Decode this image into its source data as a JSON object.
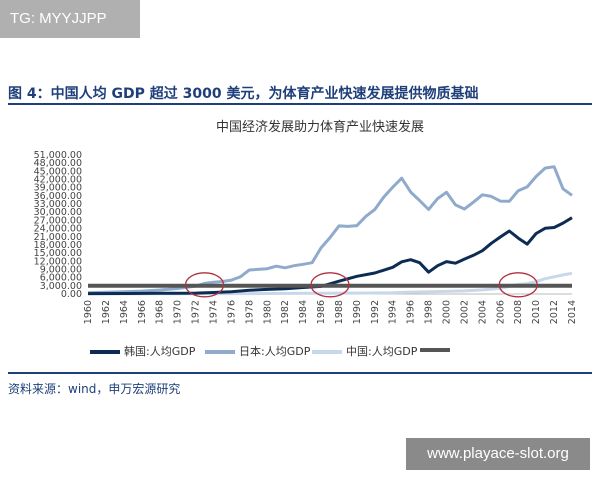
{
  "tag_text": "TG: MYYJJPP",
  "figure_title": "图 4：中国人均 GDP 超过 3000 美元，为体育产业快速发展提供物质基础",
  "source_text": "资料来源：wind，申万宏源研究",
  "watermark_text": "www.playace-slot.org",
  "chart_data": {
    "type": "line",
    "title": "中国经济发展助力体育产业快速发展",
    "ylim": [
      0,
      51000
    ],
    "xlim": [
      1960,
      2014
    ],
    "y_ticks": [
      "0.00",
      "3,000.00",
      "6,000.00",
      "9,000.00",
      "12,000.00",
      "15,000.00",
      "18,000.00",
      "21,000.00",
      "24,000.00",
      "27,000.00",
      "30,000.00",
      "33,000.00",
      "36,000.00",
      "39,000.00",
      "42,000.00",
      "45,000.00",
      "48,000.00",
      "51,000.00"
    ],
    "x_ticks": [
      "1960",
      "1962",
      "1964",
      "1966",
      "1968",
      "1970",
      "1972",
      "1974",
      "1976",
      "1978",
      "1980",
      "1982",
      "1984",
      "1986",
      "1988",
      "1990",
      "1992",
      "1994",
      "1996",
      "1998",
      "2000",
      "2002",
      "2004",
      "2006",
      "2008",
      "2010",
      "2012",
      "2014"
    ],
    "legend_position": "bottom",
    "series": [
      {
        "name": "韩国:人均GDP",
        "color": "#0d2c54",
        "points": [
          [
            1960,
            150
          ],
          [
            1964,
            200
          ],
          [
            1968,
            300
          ],
          [
            1970,
            280
          ],
          [
            1972,
            330
          ],
          [
            1974,
            550
          ],
          [
            1976,
            830
          ],
          [
            1978,
            1400
          ],
          [
            1980,
            1700
          ],
          [
            1982,
            1900
          ],
          [
            1984,
            2400
          ],
          [
            1986,
            2800
          ],
          [
            1988,
            4700
          ],
          [
            1990,
            6500
          ],
          [
            1992,
            7700
          ],
          [
            1994,
            9800
          ],
          [
            1995,
            11800
          ],
          [
            1996,
            12600
          ],
          [
            1997,
            11500
          ],
          [
            1998,
            8000
          ],
          [
            1999,
            10400
          ],
          [
            2000,
            11900
          ],
          [
            2001,
            11300
          ],
          [
            2002,
            12800
          ],
          [
            2003,
            14200
          ],
          [
            2004,
            15900
          ],
          [
            2005,
            18600
          ],
          [
            2006,
            20900
          ],
          [
            2007,
            23100
          ],
          [
            2008,
            20500
          ],
          [
            2009,
            18300
          ],
          [
            2010,
            22200
          ],
          [
            2011,
            24100
          ],
          [
            2012,
            24400
          ],
          [
            2013,
            26000
          ],
          [
            2014,
            28000
          ]
        ]
      },
      {
        "name": "日本:人均GDP",
        "color": "#8faacc",
        "points": [
          [
            1960,
            480
          ],
          [
            1962,
            650
          ],
          [
            1964,
            850
          ],
          [
            1966,
            1050
          ],
          [
            1968,
            1450
          ],
          [
            1970,
            2000
          ],
          [
            1972,
            2900
          ],
          [
            1973,
            3900
          ],
          [
            1974,
            4300
          ],
          [
            1975,
            4600
          ],
          [
            1976,
            5100
          ],
          [
            1977,
            6300
          ],
          [
            1978,
            8800
          ],
          [
            1980,
            9300
          ],
          [
            1981,
            10200
          ],
          [
            1982,
            9600
          ],
          [
            1983,
            10400
          ],
          [
            1984,
            10900
          ],
          [
            1985,
            11500
          ],
          [
            1986,
            16900
          ],
          [
            1987,
            20700
          ],
          [
            1988,
            25000
          ],
          [
            1989,
            24800
          ],
          [
            1990,
            25100
          ],
          [
            1991,
            28500
          ],
          [
            1992,
            31000
          ],
          [
            1993,
            35600
          ],
          [
            1994,
            39200
          ],
          [
            1995,
            42500
          ],
          [
            1996,
            37400
          ],
          [
            1997,
            34300
          ],
          [
            1998,
            31000
          ],
          [
            1999,
            35000
          ],
          [
            2000,
            37300
          ],
          [
            2001,
            32700
          ],
          [
            2002,
            31200
          ],
          [
            2003,
            33700
          ],
          [
            2004,
            36400
          ],
          [
            2005,
            35800
          ],
          [
            2006,
            34100
          ],
          [
            2007,
            34000
          ],
          [
            2008,
            37900
          ],
          [
            2009,
            39300
          ],
          [
            2010,
            43100
          ],
          [
            2011,
            46200
          ],
          [
            2012,
            46700
          ],
          [
            2013,
            38600
          ],
          [
            2014,
            36200
          ]
        ]
      },
      {
        "name": "中国:人均GDP",
        "color": "#c9d8e8",
        "points": [
          [
            1960,
            90
          ],
          [
            1970,
            110
          ],
          [
            1978,
            160
          ],
          [
            1980,
            190
          ],
          [
            1985,
            290
          ],
          [
            1990,
            320
          ],
          [
            1994,
            470
          ],
          [
            1996,
            710
          ],
          [
            2000,
            960
          ],
          [
            2002,
            1150
          ],
          [
            2004,
            1510
          ],
          [
            2006,
            2100
          ],
          [
            2008,
            3470
          ],
          [
            2009,
            3830
          ],
          [
            2010,
            4560
          ],
          [
            2011,
            5600
          ],
          [
            2012,
            6300
          ],
          [
            2013,
            7000
          ],
          [
            2014,
            7600
          ]
        ]
      },
      {
        "name": "",
        "color": "#555555",
        "points": [
          [
            1960,
            3000
          ],
          [
            2014,
            3000
          ]
        ]
      }
    ],
    "annotations": [
      {
        "shape": "ellipse",
        "x": 1973,
        "y": 3000
      },
      {
        "shape": "ellipse",
        "x": 1987,
        "y": 3000
      },
      {
        "shape": "ellipse",
        "x": 2008,
        "y": 3000
      }
    ]
  }
}
